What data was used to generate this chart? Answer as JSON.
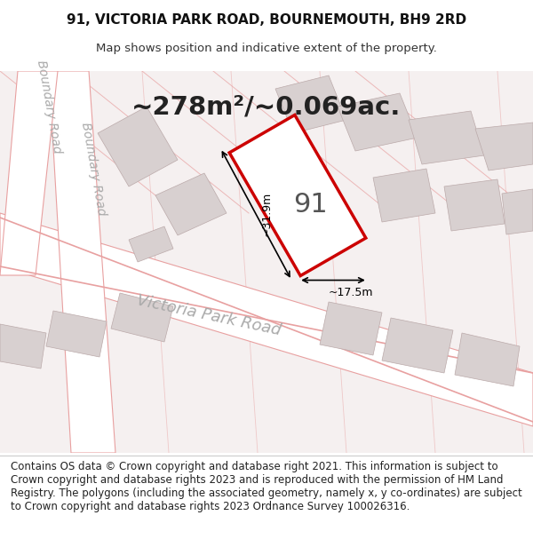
{
  "title_line1": "91, VICTORIA PARK ROAD, BOURNEMOUTH, BH9 2RD",
  "title_line2": "Map shows position and indicative extent of the property.",
  "area_text": "~278m²/~0.069ac.",
  "label_91": "91",
  "dim_width": "~17.5m",
  "dim_height": "~31.9m",
  "road_label1": "Victoria Park Road",
  "road_label2": "Boundary Road",
  "road_label3": "Boundary Road",
  "footer_text": "Contains OS data © Crown copyright and database right 2021. This information is subject to Crown copyright and database rights 2023 and is reproduced with the permission of HM Land Registry. The polygons (including the associated geometry, namely x, y co-ordinates) are subject to Crown copyright and database rights 2023 Ordnance Survey 100026316.",
  "bg_color": "#ffffff",
  "map_bg": "#f5f0f0",
  "road_color": "#ffffff",
  "block_color": "#d8d0d0",
  "highlight_color": "#ffffff",
  "highlight_edge": "#cc0000",
  "road_line_color": "#e8a0a0",
  "dim_color": "#000000",
  "text_color": "#333333",
  "title_fontsize": 11,
  "area_fontsize": 22,
  "footer_fontsize": 8.5
}
